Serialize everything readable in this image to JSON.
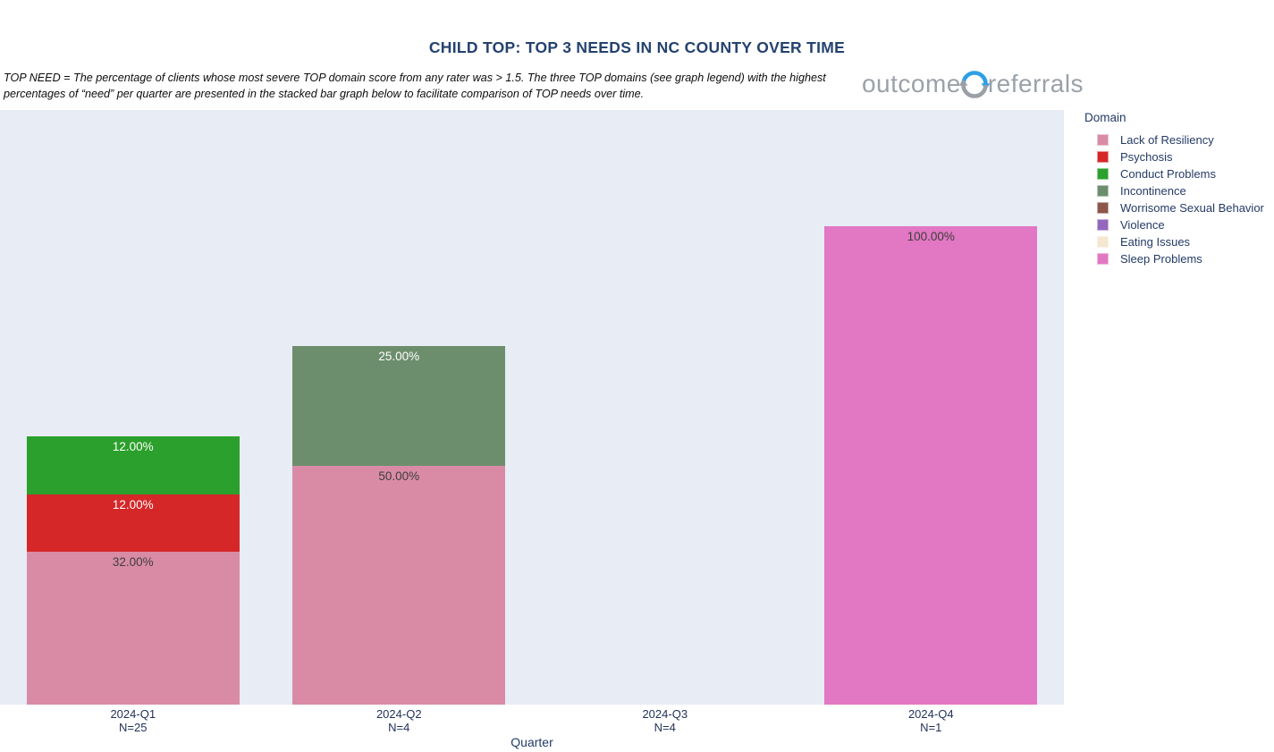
{
  "header": {
    "title": "CHILD TOP: TOP 3 NEEDS IN NC COUNTY OVER TIME",
    "notes": "TOP NEED = The percentage of clients whose most severe TOP domain score from any rater was > 1.5.  The three TOP domains (see graph legend) with the highest percentages of “need” per quarter are presented in the stacked bar graph below to facilitate comparison of TOP needs over time."
  },
  "logo": {
    "word1": "outcome",
    "word2": "referrals",
    "text_color": "#9ba1a9",
    "arrow_top_color": "#2e9fe6",
    "arrow_bottom_color": "#9aa0a6"
  },
  "legend": {
    "title": "Domain",
    "items": [
      {
        "label": "Lack of Resiliency",
        "color": "#d98ba6",
        "label_text_color": "#3d3d3d"
      },
      {
        "label": "Psychosis",
        "color": "#d62728",
        "label_text_color": "#ffffff"
      },
      {
        "label": "Conduct Problems",
        "color": "#2ca02c",
        "label_text_color": "#ffffff"
      },
      {
        "label": "Incontinence",
        "color": "#6d8e6d",
        "label_text_color": "#ffffff"
      },
      {
        "label": "Worrisome Sexual Behavior",
        "color": "#8c564b",
        "label_text_color": "#ffffff"
      },
      {
        "label": "Violence",
        "color": "#9467bd",
        "label_text_color": "#ffffff"
      },
      {
        "label": "Eating Issues",
        "color": "#f5e7d0",
        "label_text_color": "#3d3d3d"
      },
      {
        "label": "Sleep Problems",
        "color": "#e277c3",
        "label_text_color": "#3d3d3d"
      }
    ]
  },
  "chart_data": {
    "type": "bar",
    "stacked": true,
    "title": "CHILD TOP: TOP 3 NEEDS IN NC COUNTY OVER TIME",
    "xlabel": "Quarter",
    "ylabel": "",
    "legend_title": "Domain",
    "legend_position": "right",
    "grid": false,
    "plot_bg": "#e7ecf5",
    "ylim": [
      0,
      124.3
    ],
    "categories": [
      {
        "label": "2024-Q1",
        "n_label": "N=25",
        "segments": [
          {
            "domain": "Lack of Resiliency",
            "value": 32,
            "display": "32.00%"
          },
          {
            "domain": "Psychosis",
            "value": 12,
            "display": "12.00%"
          },
          {
            "domain": "Conduct Problems",
            "value": 12,
            "display": "12.00%"
          }
        ]
      },
      {
        "label": "2024-Q2",
        "n_label": "N=4",
        "segments": [
          {
            "domain": "Lack of Resiliency",
            "value": 50,
            "display": "50.00%"
          },
          {
            "domain": "Incontinence",
            "value": 25,
            "display": "25.00%"
          }
        ]
      },
      {
        "label": "2024-Q3",
        "n_label": "N=4",
        "segments": []
      },
      {
        "label": "2024-Q4",
        "n_label": "N=1",
        "segments": [
          {
            "domain": "Sleep Problems",
            "value": 100,
            "display": "100.00%"
          }
        ]
      }
    ]
  }
}
